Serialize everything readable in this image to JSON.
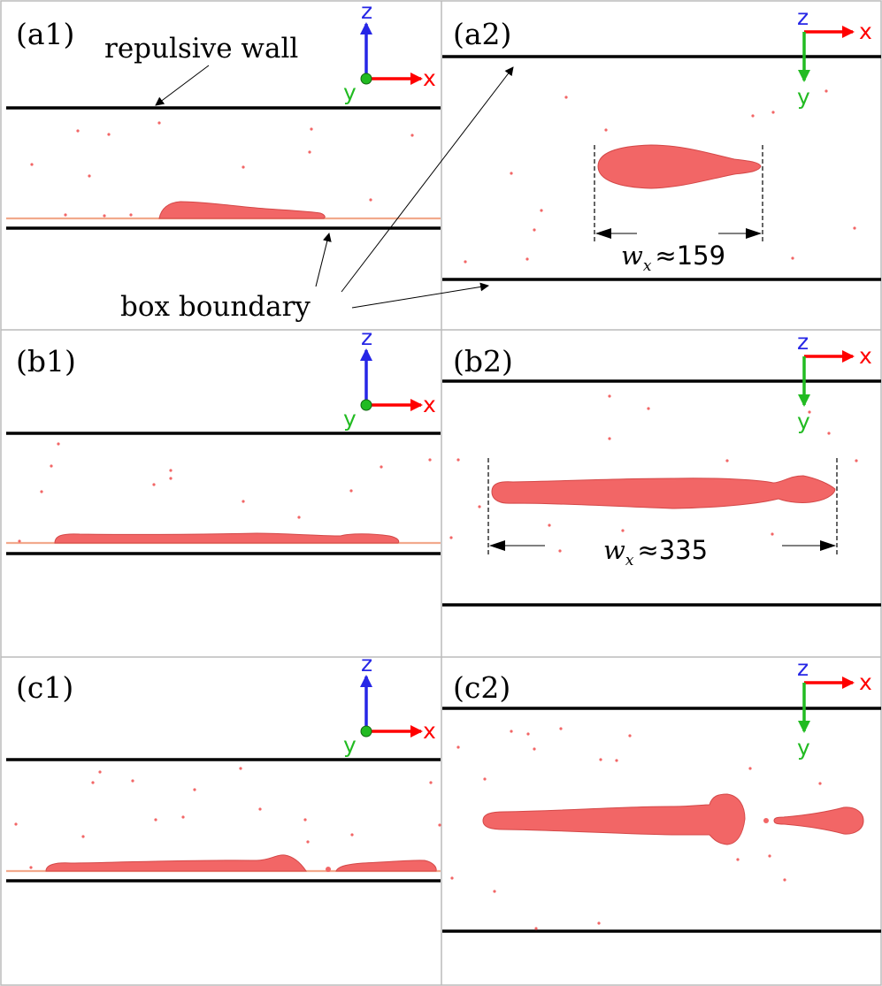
{
  "colors": {
    "droplet": "#F26666",
    "droplet_edge": "#D44848",
    "surface": "#F2A98C",
    "axis_x": "#FF0000",
    "axis_y": "#22BB22",
    "axis_z": "#2626E6",
    "wall": "#000000",
    "panel_border": "#BBBBBB"
  },
  "panels": [
    {
      "id": "a1",
      "label": "(a1)",
      "view": "side"
    },
    {
      "id": "a2",
      "label": "(a2)",
      "view": "top"
    },
    {
      "id": "b1",
      "label": "(b1)",
      "view": "side"
    },
    {
      "id": "b2",
      "label": "(b2)",
      "view": "top"
    },
    {
      "id": "c1",
      "label": "(c1)",
      "view": "side"
    },
    {
      "id": "c2",
      "label": "(c2)",
      "view": "top"
    }
  ],
  "axes": {
    "x": "x",
    "y": "y",
    "z": "z"
  },
  "annotations": {
    "repulsive_wall": "repulsive wall",
    "box_boundary": "box boundary"
  },
  "measurements": [
    {
      "panel": "a2",
      "symbol": "w",
      "subscript": "x",
      "relation": "≈",
      "value": "159"
    },
    {
      "panel": "b2",
      "symbol": "w",
      "subscript": "x",
      "relation": "≈",
      "value": "335"
    }
  ]
}
